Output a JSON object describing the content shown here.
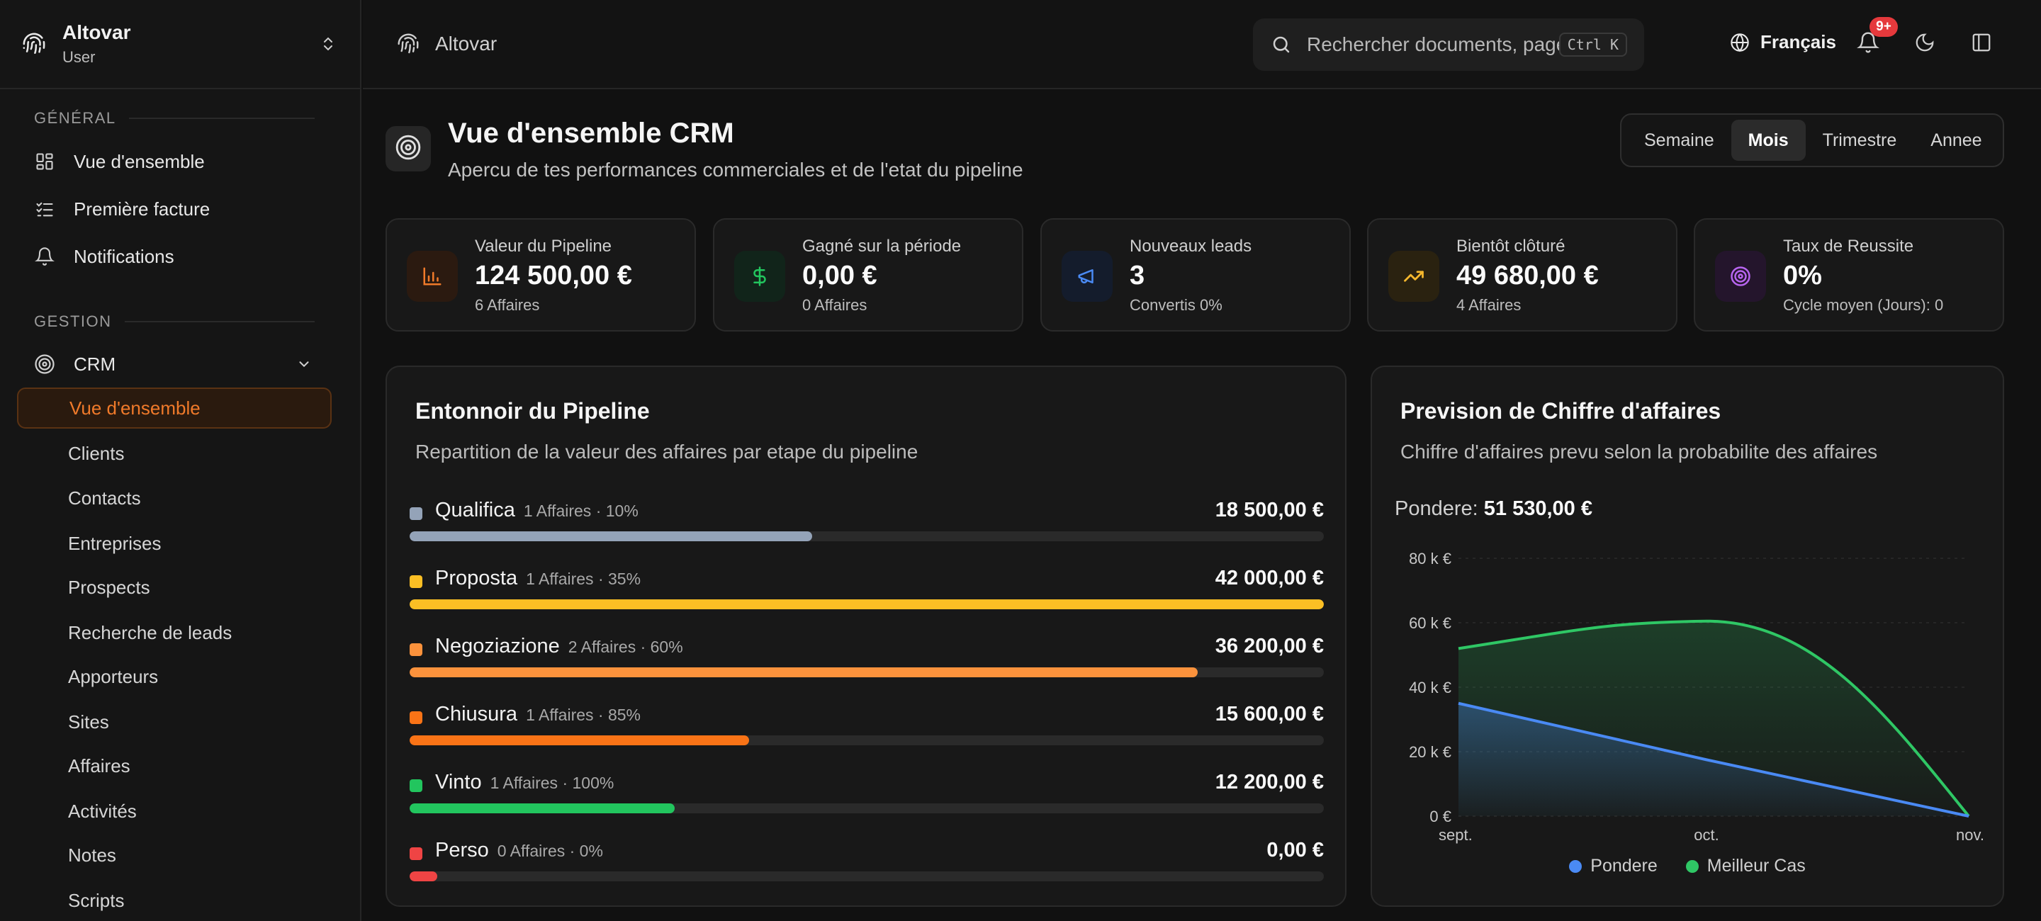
{
  "brand": {
    "name": "Altovar",
    "role": "User"
  },
  "sidebar": {
    "general_label": "GÉNÉRAL",
    "general_items": [
      "Vue d'ensemble",
      "Première facture",
      "Notifications"
    ],
    "gestion_label": "GESTION",
    "crm_label": "CRM",
    "crm_items": [
      "Vue d'ensemble",
      "Clients",
      "Contacts",
      "Entreprises",
      "Prospects",
      "Recherche de leads",
      "Apporteurs",
      "Sites",
      "Affaires",
      "Activités",
      "Notes",
      "Scripts"
    ],
    "active_item": "Vue d'ensemble"
  },
  "topbar": {
    "breadcrumb": "Altovar",
    "search_placeholder": "Rechercher documents, pages...",
    "search_shortcut": "Ctrl K",
    "language": "Français",
    "notif_badge": "9+"
  },
  "header": {
    "title": "Vue d'ensemble CRM",
    "subtitle": "Apercu de tes performances commerciales et de l'etat du pipeline",
    "periods": [
      "Semaine",
      "Mois",
      "Trimestre",
      "Annee"
    ],
    "active_period": "Mois"
  },
  "kpis": [
    {
      "label": "Valeur du Pipeline",
      "value": "124 500,00 €",
      "sub": "6 Affaires",
      "icon": "bar-chart-icon",
      "color": "#f07a2a"
    },
    {
      "label": "Gagné sur la période",
      "value": "0,00 €",
      "sub": "0 Affaires",
      "icon": "dollar-icon",
      "color": "#22c55e"
    },
    {
      "label": "Nouveaux leads",
      "value": "3",
      "sub": "Convertis 0%",
      "icon": "megaphone-icon",
      "color": "#4a8af4"
    },
    {
      "label": "Bientôt clôturé",
      "value": "49 680,00 €",
      "sub": "4 Affaires",
      "icon": "trending-up-icon",
      "color": "#f5b82e"
    },
    {
      "label": "Taux de Reussite",
      "value": "0%",
      "sub": "Cycle moyen (Jours): 0",
      "icon": "target-icon",
      "color": "#b865f0"
    }
  ],
  "funnel": {
    "title": "Entonnoir du Pipeline",
    "subtitle": "Repartition de la valeur des affaires par etape du pipeline",
    "stages": [
      {
        "name": "Qualifica",
        "meta": "1 Affaires · 10%",
        "amount": "18 500,00 €",
        "color": "#94a3b8",
        "share": 0.44
      },
      {
        "name": "Proposta",
        "meta": "1 Affaires · 35%",
        "amount": "42 000,00 €",
        "color": "#fbbf24",
        "share": 1.0
      },
      {
        "name": "Negoziazione",
        "meta": "2 Affaires · 60%",
        "amount": "36 200,00 €",
        "color": "#fb923c",
        "share": 0.862
      },
      {
        "name": "Chiusura",
        "meta": "1 Affaires · 85%",
        "amount": "15 600,00 €",
        "color": "#f97316",
        "share": 0.371
      },
      {
        "name": "Vinto",
        "meta": "1 Affaires · 100%",
        "amount": "12 200,00 €",
        "color": "#22c55e",
        "share": 0.29
      },
      {
        "name": "Perso",
        "meta": "0 Affaires · 0%",
        "amount": "0,00 €",
        "color": "#ef4444",
        "share": 0.03
      }
    ]
  },
  "forecast": {
    "title": "Prevision de Chiffre d'affaires",
    "subtitle": "Chiffre d'affaires prevu selon la probabilite des affaires",
    "weighted_label": "Pondere:",
    "weighted_value": "51 530,00 €",
    "legend": [
      "Pondere",
      "Meilleur Cas"
    ]
  },
  "chart_data": {
    "type": "area",
    "categories": [
      "sept.",
      "oct.",
      "nov."
    ],
    "series": [
      {
        "name": "Pondere",
        "color": "#4a8af4",
        "values": [
          35000,
          17500,
          0
        ]
      },
      {
        "name": "Meilleur Cas",
        "color": "#2fc765",
        "values": [
          52000,
          60500,
          0
        ]
      }
    ],
    "yticks": [
      "0 €",
      "20 k €",
      "40 k €",
      "60 k €",
      "80 k €"
    ],
    "ylim": [
      0,
      80000
    ],
    "grid": true,
    "legend": "bottom"
  }
}
